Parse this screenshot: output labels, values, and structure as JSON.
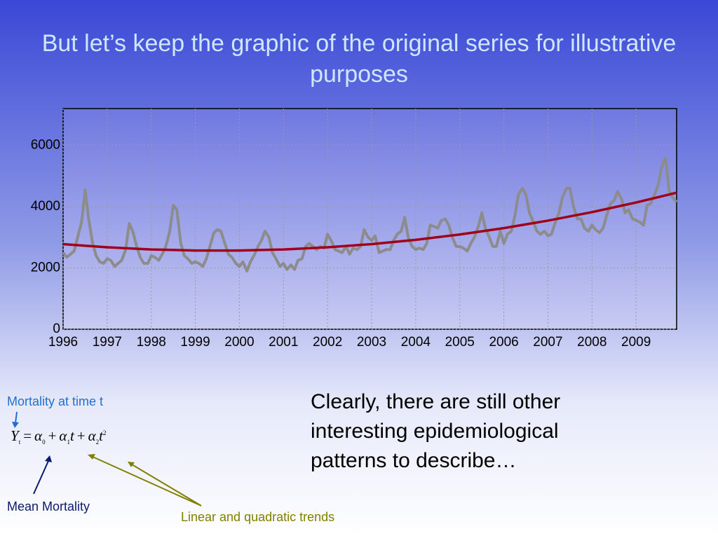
{
  "title": "But let’s keep the graphic of the original series for illustrative purposes",
  "chart_data": {
    "type": "line",
    "x": [
      1996.0,
      1996.08,
      1996.17,
      1996.25,
      1996.33,
      1996.42,
      1996.5,
      1996.58,
      1996.67,
      1996.75,
      1996.83,
      1996.92,
      1997.0,
      1997.08,
      1997.17,
      1997.25,
      1997.33,
      1997.42,
      1997.5,
      1997.58,
      1997.67,
      1997.75,
      1997.83,
      1997.92,
      1998.0,
      1998.08,
      1998.17,
      1998.25,
      1998.33,
      1998.42,
      1998.5,
      1998.58,
      1998.67,
      1998.75,
      1998.83,
      1998.92,
      1999.0,
      1999.08,
      1999.17,
      1999.25,
      1999.33,
      1999.42,
      1999.5,
      1999.58,
      1999.67,
      1999.75,
      1999.83,
      1999.92,
      2000.0,
      2000.08,
      2000.17,
      2000.25,
      2000.33,
      2000.42,
      2000.5,
      2000.58,
      2000.67,
      2000.75,
      2000.83,
      2000.92,
      2001.0,
      2001.08,
      2001.17,
      2001.25,
      2001.33,
      2001.42,
      2001.5,
      2001.58,
      2001.67,
      2001.75,
      2001.83,
      2001.92,
      2002.0,
      2002.08,
      2002.17,
      2002.25,
      2002.33,
      2002.42,
      2002.5,
      2002.58,
      2002.67,
      2002.75,
      2002.83,
      2002.92,
      2003.0,
      2003.08,
      2003.17,
      2003.25,
      2003.33,
      2003.42,
      2003.5,
      2003.58,
      2003.67,
      2003.75,
      2003.83,
      2003.92,
      2004.0,
      2004.08,
      2004.17,
      2004.25,
      2004.33,
      2004.42,
      2004.5,
      2004.58,
      2004.67,
      2004.75,
      2004.83,
      2004.92,
      2005.0,
      2005.08,
      2005.17,
      2005.25,
      2005.33,
      2005.42,
      2005.5,
      2005.58,
      2005.67,
      2005.75,
      2005.83,
      2005.92,
      2006.0,
      2006.08,
      2006.17,
      2006.25,
      2006.33,
      2006.42,
      2006.5,
      2006.58,
      2006.67,
      2006.75,
      2006.83,
      2006.92,
      2007.0,
      2007.08,
      2007.17,
      2007.25,
      2007.33,
      2007.42,
      2007.5,
      2007.58,
      2007.67,
      2007.75,
      2007.83,
      2007.92,
      2008.0,
      2008.08,
      2008.17,
      2008.25,
      2008.33,
      2008.42,
      2008.5,
      2008.58,
      2008.67,
      2008.75,
      2008.83,
      2008.92,
      2009.0,
      2009.08,
      2009.17,
      2009.25,
      2009.33,
      2009.42,
      2009.5,
      2009.58,
      2009.67,
      2009.75,
      2009.83,
      2009.92
    ],
    "series": [
      {
        "color": "#8c8c8c",
        "values": [
          2500,
          2350,
          2450,
          2550,
          3000,
          3500,
          4550,
          3600,
          2800,
          2400,
          2200,
          2150,
          2300,
          2250,
          2050,
          2150,
          2250,
          2600,
          3450,
          3200,
          2700,
          2350,
          2150,
          2150,
          2400,
          2350,
          2250,
          2450,
          2700,
          3200,
          4050,
          3900,
          2800,
          2400,
          2300,
          2150,
          2200,
          2150,
          2050,
          2300,
          2700,
          3150,
          3250,
          3200,
          2800,
          2450,
          2350,
          2150,
          2050,
          2200,
          1900,
          2200,
          2400,
          2700,
          2900,
          3200,
          3000,
          2500,
          2300,
          2050,
          2150,
          1950,
          2100,
          1950,
          2250,
          2300,
          2700,
          2800,
          2700,
          2600,
          2700,
          2650,
          3100,
          2900,
          2600,
          2550,
          2500,
          2700,
          2450,
          2650,
          2600,
          2700,
          3250,
          3000,
          2900,
          3050,
          2500,
          2550,
          2600,
          2600,
          2900,
          3100,
          3200,
          3650,
          3000,
          2700,
          2600,
          2650,
          2600,
          2800,
          3400,
          3350,
          3300,
          3550,
          3600,
          3400,
          3000,
          2700,
          2700,
          2650,
          2550,
          2800,
          3000,
          3350,
          3800,
          3300,
          3000,
          2700,
          2700,
          3200,
          2800,
          3100,
          3200,
          3700,
          4400,
          4600,
          4400,
          3800,
          3500,
          3200,
          3100,
          3200,
          3050,
          3100,
          3500,
          3800,
          4300,
          4600,
          4600,
          4000,
          3600,
          3600,
          3300,
          3200,
          3400,
          3250,
          3150,
          3300,
          3700,
          4100,
          4200,
          4500,
          4250,
          3800,
          3900,
          3600,
          3550,
          3500,
          3400,
          4050,
          4100,
          4400,
          4700,
          5300,
          5600,
          4500,
          4300,
          4150
        ]
      },
      {
        "color": "#a00018",
        "x": [
          1996,
          1997,
          1998,
          1999,
          2000,
          2001,
          2002,
          2003,
          2004,
          2005,
          2006,
          2007,
          2008,
          2009,
          2009.92
        ],
        "values": [
          2778,
          2674,
          2604,
          2569,
          2569,
          2604,
          2674,
          2778,
          2917,
          3091,
          3300,
          3544,
          3822,
          4135,
          4455
        ]
      }
    ],
    "xlim": [
      1996,
      2009.92
    ],
    "xticks": [
      1996,
      1997,
      1998,
      1999,
      2000,
      2001,
      2002,
      2003,
      2004,
      2005,
      2006,
      2007,
      2008,
      2009
    ],
    "ylim": [
      0,
      7200
    ],
    "yticks": [
      0,
      2000,
      4000,
      6000
    ],
    "grid": true
  },
  "annotations": {
    "mortality_label": "Mortality at time t",
    "mean_label": "Mean Mortality",
    "trends_label": "Linear and quadratic trends"
  },
  "formula": [
    "Y",
    "t",
    "=",
    "α",
    "0",
    "+",
    "α",
    "1",
    "t",
    "+",
    "α",
    "2",
    "t",
    "2"
  ],
  "body_text": "Clearly, there are still other interesting epidemiological patterns to describe…"
}
